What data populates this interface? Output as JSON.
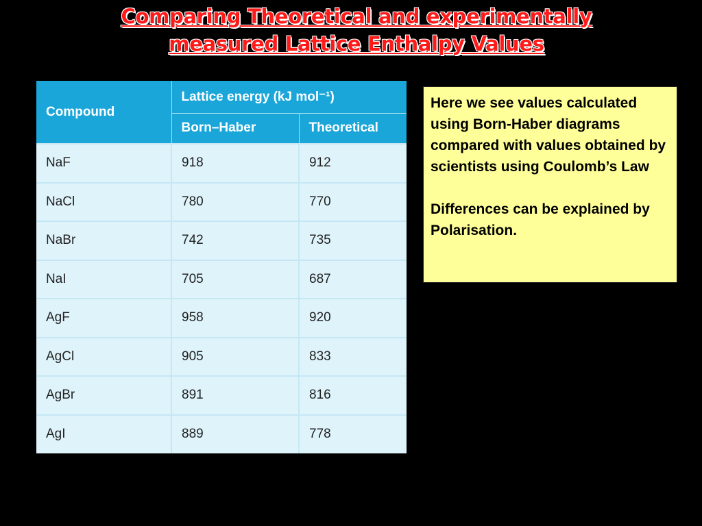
{
  "title": {
    "line1": "Comparing Theoretical and experimentally",
    "line2": "measured Lattice Enthalpy Values"
  },
  "table": {
    "header": {
      "compound": "Compound",
      "lattice_energy": "Lattice energy (kJ mol⁻¹)",
      "born_haber": "Born–Haber",
      "theoretical": "Theoretical"
    },
    "rows": [
      {
        "compound": "NaF",
        "born_haber": "918",
        "theoretical": "912"
      },
      {
        "compound": "NaCl",
        "born_haber": "780",
        "theoretical": "770"
      },
      {
        "compound": "NaBr",
        "born_haber": "742",
        "theoretical": "735"
      },
      {
        "compound": "NaI",
        "born_haber": "705",
        "theoretical": "687"
      },
      {
        "compound": "AgF",
        "born_haber": "958",
        "theoretical": "920"
      },
      {
        "compound": "AgCl",
        "born_haber": "905",
        "theoretical": "833"
      },
      {
        "compound": "AgBr",
        "born_haber": "891",
        "theoretical": "816"
      },
      {
        "compound": "AgI",
        "born_haber": "889",
        "theoretical": "778"
      }
    ]
  },
  "note": {
    "paragraph1": "Here we see values calculated using Born-Haber diagrams compared with values obtained by scientists using Coulomb’s Law",
    "paragraph2": "Differences can be explained by Polarisation."
  },
  "colors": {
    "background": "#000000",
    "title": "#ff1a1a",
    "table_header": "#1aa6d9",
    "table_body": "#dff3fb",
    "note_background": "#ffff99"
  }
}
